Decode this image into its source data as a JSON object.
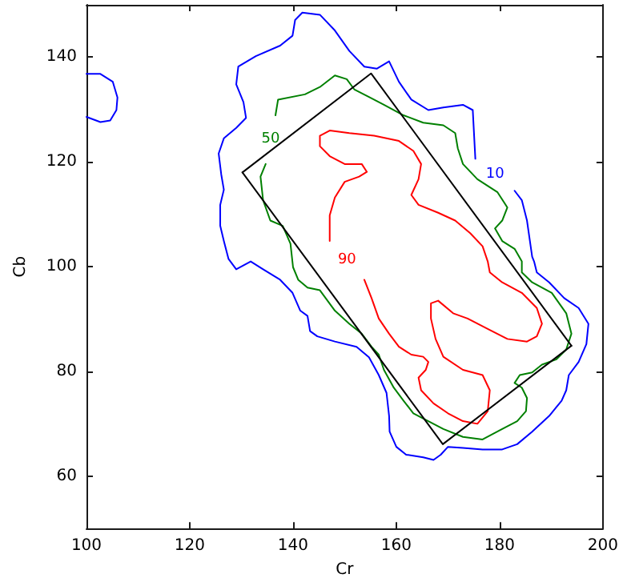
{
  "chart_data": {
    "type": "line",
    "xlabel": "Cr",
    "ylabel": "Cb",
    "xlim": [
      100,
      200
    ],
    "ylim": [
      50,
      150
    ],
    "xticks": [
      100,
      120,
      140,
      160,
      180,
      200
    ],
    "yticks": [
      60,
      80,
      100,
      120,
      140
    ],
    "grid": false,
    "legend": false,
    "marker": "none",
    "line_style": "solid",
    "series": [
      {
        "name": "10",
        "color": "#0000ff",
        "x": [
          175.3,
          174.8,
          172.9,
          169.1,
          166.2,
          162.9,
          160.5,
          158.6,
          156.2,
          153.8,
          150.9,
          148.1,
          145.2,
          141.8,
          140.4,
          139.9,
          137.5,
          132.8,
          129.4,
          129,
          130.4,
          130.9,
          129,
          126.6,
          125.6,
          126.1,
          126.6,
          125.9,
          125.9,
          126.6,
          127.5,
          129,
          131.8,
          134.2,
          137.5,
          139.9,
          141.4,
          142.8,
          143.3,
          144.7,
          148.1,
          152.3,
          154.7,
          156.6,
          158.1,
          158.6,
          158.7,
          160,
          161.9,
          165.2,
          167.2,
          168.6,
          170,
          172.9,
          176.7,
          180.5,
          183.4,
          186.3,
          189.6,
          192,
          192.9,
          193.4,
          195.3,
          196.8,
          197.2,
          195.3,
          192.5,
          189.6,
          187.2,
          186.7,
          186.3,
          185.3,
          184.3,
          182.9
        ],
        "values": [
          120.6,
          129.9,
          130.9,
          130.4,
          129.9,
          131.9,
          135.3,
          139.2,
          137.8,
          138.2,
          141.2,
          145.1,
          148.1,
          148.5,
          147.1,
          144.1,
          142.2,
          140.2,
          138.2,
          134.8,
          131.4,
          128.4,
          126.5,
          124.5,
          121.6,
          117.6,
          114.7,
          111.8,
          107.8,
          104.9,
          101.5,
          99.5,
          101,
          99.5,
          97.5,
          95,
          91.6,
          90.6,
          87.7,
          86.7,
          85.7,
          84.7,
          82.7,
          79.3,
          75.9,
          71.5,
          68.5,
          65.6,
          64.1,
          63.6,
          63.1,
          64.1,
          65.6,
          65.4,
          65.1,
          65.1,
          66.1,
          68.5,
          71.5,
          74.4,
          76.4,
          79.3,
          81.8,
          85.2,
          89.1,
          92.1,
          94,
          97,
          98.9,
          100.9,
          101.9,
          108.8,
          112.7,
          114.5
        ]
      },
      {
        "color": "#0000ff",
        "x": [
          100,
          102.7,
          105.1,
          106,
          105.8,
          104.6,
          102.7,
          100
        ],
        "values": [
          136.8,
          136.8,
          135.3,
          132.3,
          129.9,
          127.9,
          127.6,
          128.6
        ]
      },
      {
        "name": "50",
        "color": "#008000",
        "x": [
          136.6,
          137.1,
          142.3,
          145.2,
          148.1,
          150.4,
          151.9,
          154.7,
          157.6,
          161.4,
          165.2,
          169.1,
          171.4,
          171.9,
          172.9,
          175.7,
          179.6,
          181.5,
          180.5,
          179.1,
          180.5,
          182.9,
          184.3,
          184.3,
          186.3,
          190.1,
          192.9,
          193.9,
          192.9,
          191,
          188.2,
          186.3,
          183.9,
          182.9,
          184.3,
          185.3,
          185.1,
          183.4,
          180.5,
          176.7,
          172.9,
          169.1,
          166.2,
          163.3,
          161.4,
          159.5,
          157.6,
          156.6,
          155.2,
          153.3,
          150.9,
          148.1,
          145.2,
          142.8,
          141,
          140,
          139.5,
          138,
          135.6,
          134.2,
          133.7,
          134.7
        ],
        "values": [
          128.9,
          131.9,
          132.9,
          134.3,
          136.5,
          135.8,
          133.8,
          132.4,
          130.9,
          128.9,
          127.5,
          127,
          125.5,
          122.6,
          119.6,
          116.7,
          114.2,
          111.3,
          108.8,
          107.3,
          104.9,
          103.4,
          101,
          98.9,
          97,
          95,
          91.1,
          87.2,
          84.2,
          82.3,
          81.3,
          79.8,
          79.3,
          77.8,
          76.9,
          74.9,
          72.4,
          70.5,
          69,
          67,
          67.5,
          69,
          70.5,
          72,
          74.4,
          76.9,
          80.3,
          83.2,
          84.7,
          87.2,
          89.1,
          91.6,
          95.5,
          96,
          97.5,
          99.9,
          104.4,
          107.8,
          108.8,
          112.7,
          117.2,
          119.6
        ]
      },
      {
        "name": "90",
        "color": "#ff0000",
        "x": [
          147.1,
          147.1,
          148.1,
          150,
          152.8,
          154.3,
          153.3,
          150,
          147.1,
          145.2,
          145.2,
          147.1,
          150.9,
          155.7,
          160.5,
          163.3,
          164.8,
          164.3,
          162.9,
          164.3,
          168.1,
          171.4,
          174.3,
          176.7,
          177.7,
          178.1,
          180.5,
          184.3,
          187.2,
          188.2,
          187.2,
          185.3,
          181.5,
          177.7,
          173.8,
          171,
          168.1,
          166.7,
          166.7,
          167.6,
          169.1,
          172.9,
          176.7,
          178.1,
          177.7,
          175.7,
          172.9,
          170,
          167.2,
          164.8,
          164.3,
          165.7,
          166.2,
          165.2,
          162.9,
          160.5,
          158.6,
          156.6,
          155.2,
          153.8
        ],
        "values": [
          104.9,
          109.8,
          113.2,
          116.2,
          117.2,
          118.1,
          119.6,
          119.6,
          121.1,
          123,
          125,
          126,
          125.5,
          125,
          124,
          122.1,
          119.6,
          116.7,
          113.7,
          111.8,
          110.3,
          108.8,
          106.4,
          103.9,
          101,
          98.9,
          97,
          95,
          92.1,
          89.1,
          86.7,
          85.7,
          86.2,
          88.1,
          90.1,
          91.1,
          93.5,
          93,
          90.1,
          86.2,
          82.8,
          80.3,
          79.3,
          76.4,
          72.4,
          70,
          70.5,
          72,
          73.9,
          76.4,
          78.8,
          80.3,
          81.8,
          82.8,
          83.2,
          84.7,
          87.2,
          90.1,
          94,
          97.5
        ]
      },
      {
        "color": "#000000",
        "x": [
          130.2,
          155.1,
          193.9
        ],
        "values": [
          118,
          136.9,
          84.9
        ]
      },
      {
        "color": "#000000",
        "x": [
          130.2,
          169,
          193.9
        ],
        "values": [
          118,
          66.1,
          84.9
        ]
      }
    ]
  }
}
